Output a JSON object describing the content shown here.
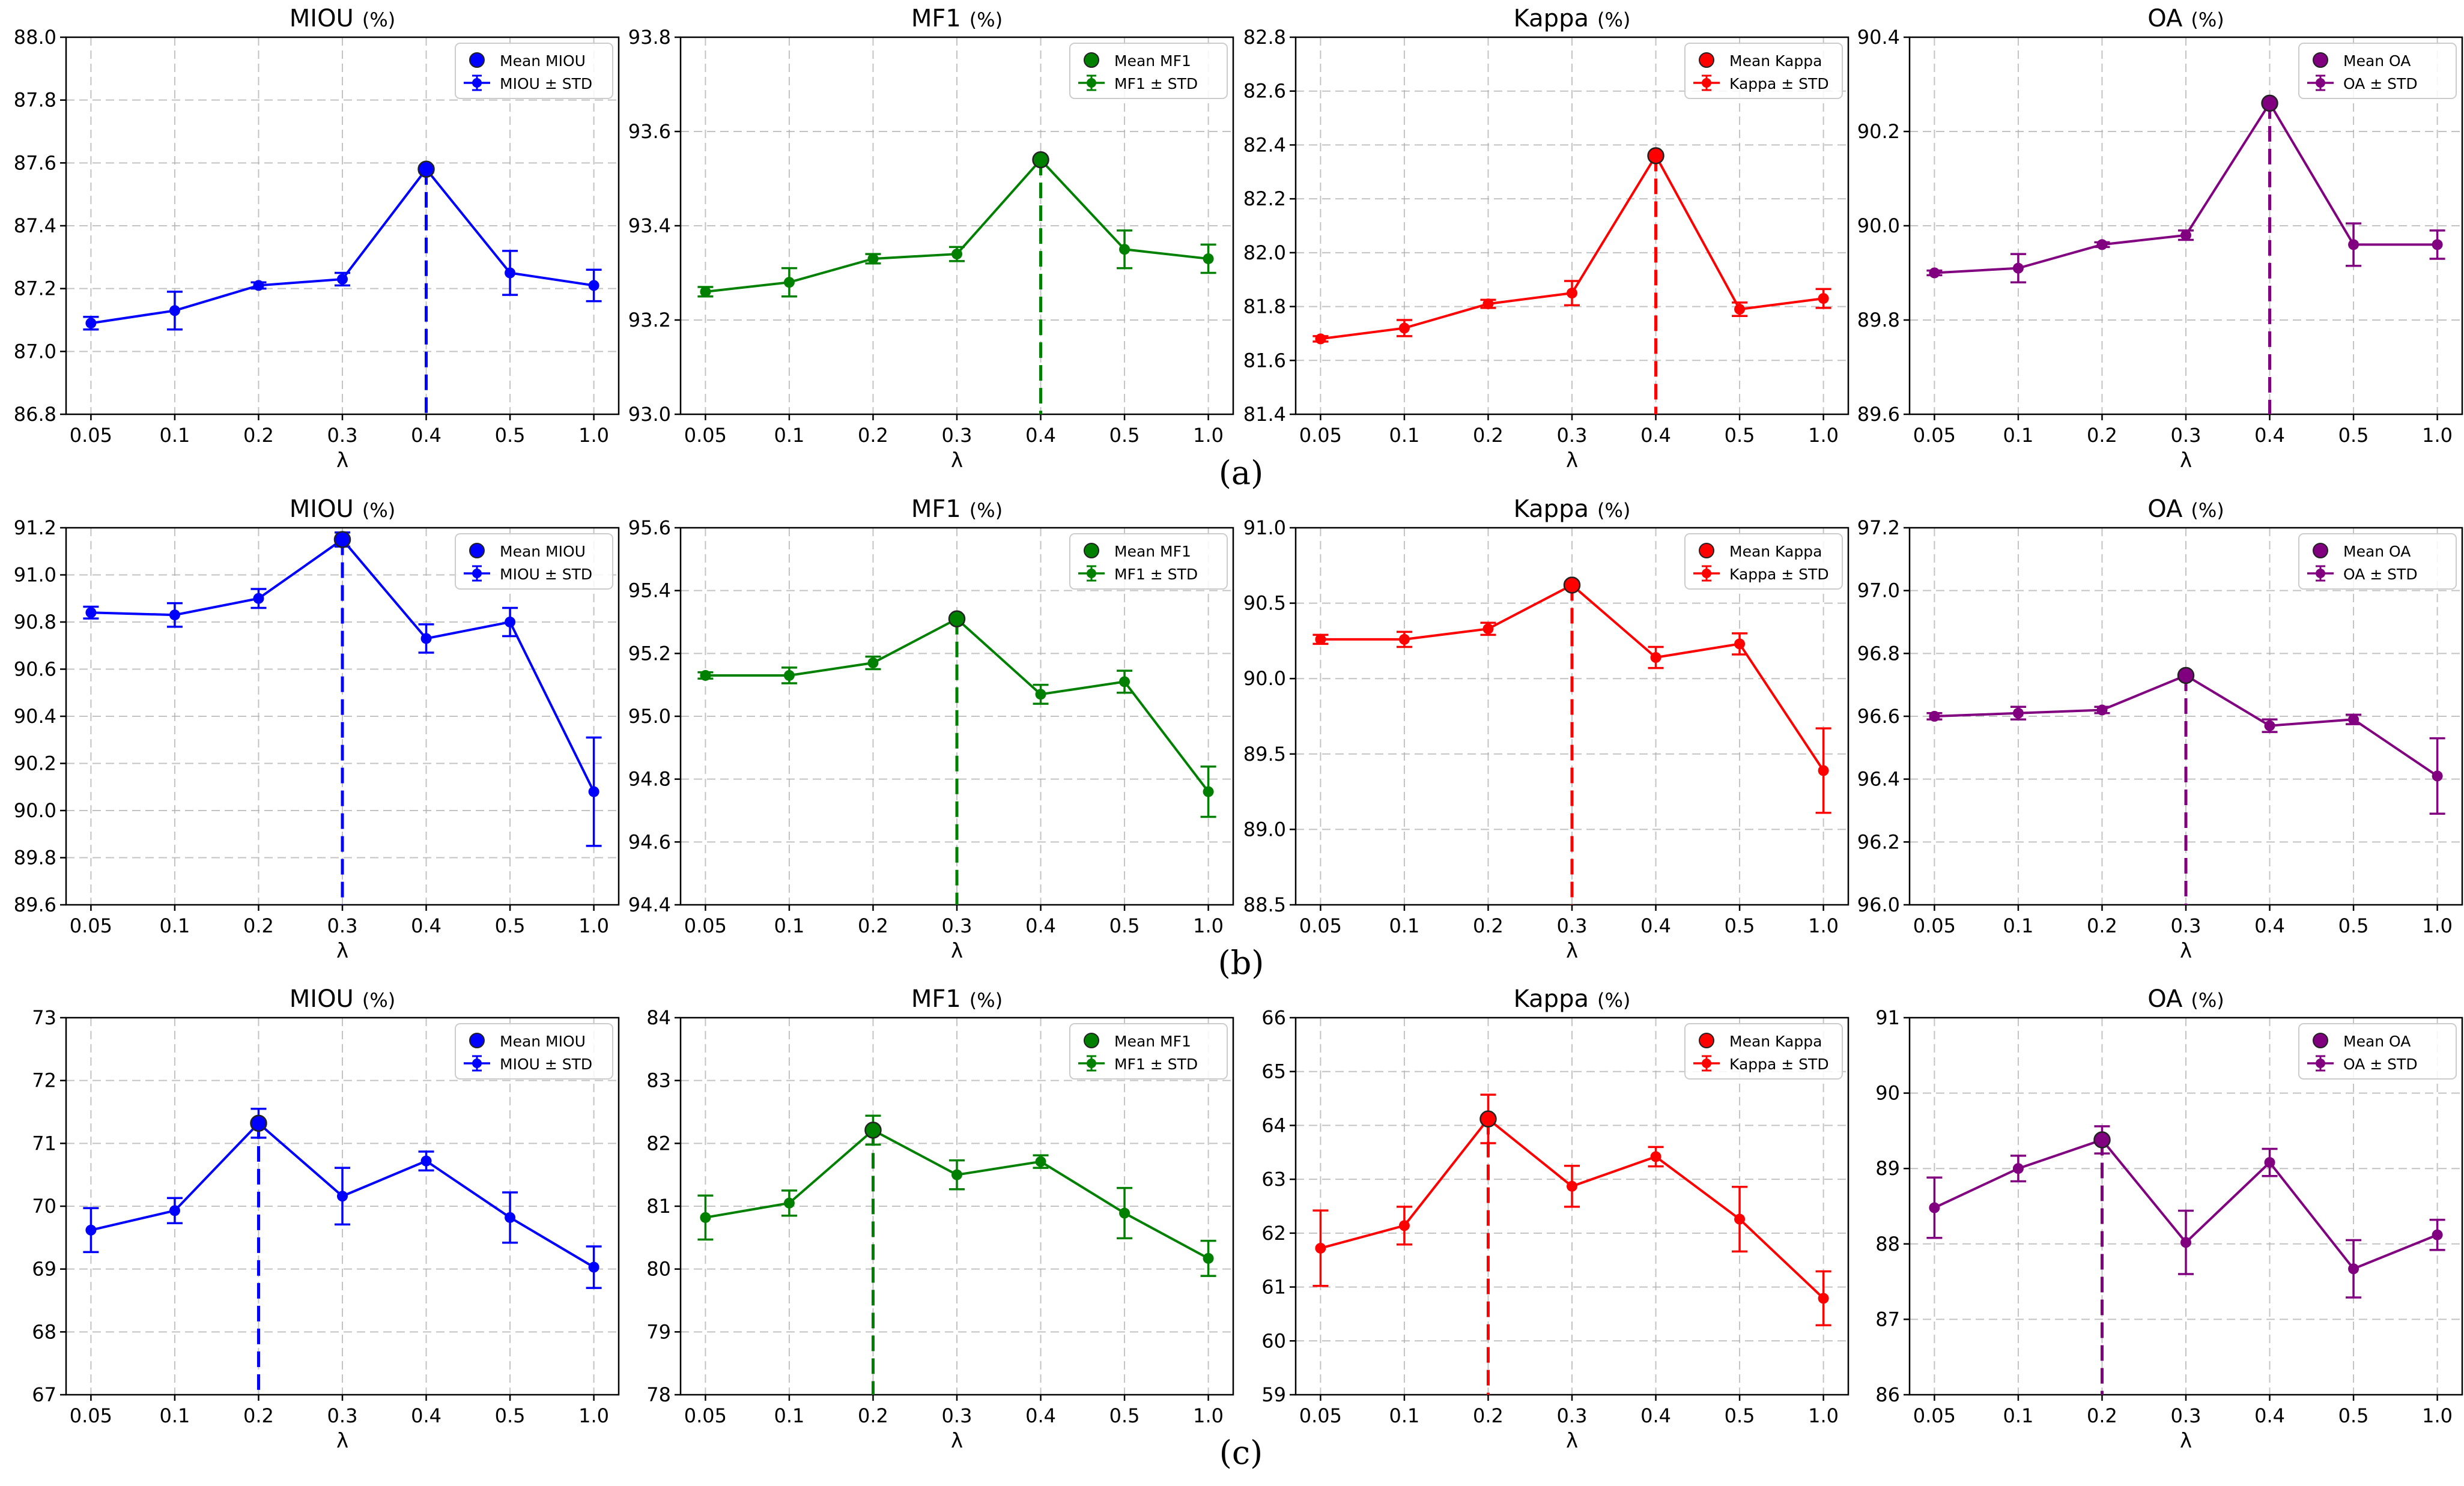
{
  "rows": [
    {
      "label": "(a)",
      "best_index": 4
    },
    {
      "label": "(b)",
      "best_index": 3
    },
    {
      "label": "(c)",
      "best_index": 2
    }
  ],
  "metrics": [
    {
      "title": "MIOU",
      "suffix": "(%)",
      "color": "#0000ff",
      "legend_mean": "Mean MIOU",
      "legend_std": "MIOU ± STD"
    },
    {
      "title": "MF1",
      "suffix": "(%)",
      "color": "#008000",
      "legend_mean": "Mean MF1",
      "legend_std": "MF1 ± STD"
    },
    {
      "title": "Kappa",
      "suffix": "(%)",
      "color": "#ff0000",
      "legend_mean": "Mean Kappa",
      "legend_std": "Kappa ± STD"
    },
    {
      "title": "OA",
      "suffix": "(%)",
      "color": "#800080",
      "legend_mean": "Mean OA",
      "legend_std": "OA ± STD"
    }
  ],
  "chart_data": [
    {
      "type": "line",
      "row": 0,
      "metric": 0,
      "title": "MIOU (%)",
      "xlabel": "λ",
      "ylabel": "",
      "categories": [
        "0.05",
        "0.1",
        "0.2",
        "0.3",
        "0.4",
        "0.5",
        "1.0"
      ],
      "values": [
        87.09,
        87.13,
        87.21,
        87.23,
        87.58,
        87.25,
        87.21
      ],
      "std": [
        0.02,
        0.06,
        0.01,
        0.02,
        0.01,
        0.07,
        0.05
      ],
      "ylim": [
        86.8,
        88.0
      ],
      "yticks": [
        "86.8",
        "87.0",
        "87.2",
        "87.4",
        "87.6",
        "87.8",
        "88.0"
      ],
      "legend": "top-right",
      "grid": true
    },
    {
      "type": "line",
      "row": 0,
      "metric": 1,
      "title": "MF1 (%)",
      "xlabel": "λ",
      "ylabel": "",
      "categories": [
        "0.05",
        "0.1",
        "0.2",
        "0.3",
        "0.4",
        "0.5",
        "1.0"
      ],
      "values": [
        93.26,
        93.28,
        93.33,
        93.34,
        93.54,
        93.35,
        93.33
      ],
      "std": [
        0.01,
        0.03,
        0.01,
        0.015,
        0.005,
        0.04,
        0.03
      ],
      "ylim": [
        93.0,
        93.8
      ],
      "yticks": [
        "93.0",
        "93.2",
        "93.4",
        "93.6",
        "93.8"
      ],
      "legend": "top-right",
      "grid": true
    },
    {
      "type": "line",
      "row": 0,
      "metric": 2,
      "title": "Kappa (%)",
      "xlabel": "λ",
      "ylabel": "",
      "categories": [
        "0.05",
        "0.1",
        "0.2",
        "0.3",
        "0.4",
        "0.5",
        "1.0"
      ],
      "values": [
        81.68,
        81.72,
        81.81,
        81.85,
        82.36,
        81.79,
        81.83
      ],
      "std": [
        0.01,
        0.03,
        0.015,
        0.045,
        0.01,
        0.025,
        0.035
      ],
      "ylim": [
        81.4,
        82.8
      ],
      "yticks": [
        "81.4",
        "81.6",
        "81.8",
        "82.0",
        "82.2",
        "82.4",
        "82.6",
        "82.8"
      ],
      "legend": "top-right",
      "grid": true
    },
    {
      "type": "line",
      "row": 0,
      "metric": 3,
      "title": "OA (%)",
      "xlabel": "λ",
      "ylabel": "",
      "categories": [
        "0.05",
        "0.1",
        "0.2",
        "0.3",
        "0.4",
        "0.5",
        "1.0"
      ],
      "values": [
        89.9,
        89.91,
        89.96,
        89.98,
        90.26,
        89.96,
        89.96
      ],
      "std": [
        0.005,
        0.03,
        0.005,
        0.01,
        0.005,
        0.045,
        0.03
      ],
      "ylim": [
        89.6,
        90.4
      ],
      "yticks": [
        "89.6",
        "89.8",
        "90.0",
        "90.2",
        "90.4"
      ],
      "legend": "top-right",
      "grid": true
    },
    {
      "type": "line",
      "row": 1,
      "metric": 0,
      "title": "MIOU (%)",
      "xlabel": "λ",
      "ylabel": "",
      "categories": [
        "0.05",
        "0.1",
        "0.2",
        "0.3",
        "0.4",
        "0.5",
        "1.0"
      ],
      "values": [
        90.84,
        90.83,
        90.9,
        91.15,
        90.73,
        90.8,
        90.08
      ],
      "std": [
        0.025,
        0.05,
        0.04,
        0.03,
        0.06,
        0.06,
        0.23
      ],
      "ylim": [
        89.6,
        91.2
      ],
      "yticks": [
        "89.6",
        "89.8",
        "90.0",
        "90.2",
        "90.4",
        "90.6",
        "90.8",
        "91.0",
        "91.2"
      ],
      "legend": "top-right",
      "grid": true
    },
    {
      "type": "line",
      "row": 1,
      "metric": 1,
      "title": "MF1 (%)",
      "xlabel": "λ",
      "ylabel": "",
      "categories": [
        "0.05",
        "0.1",
        "0.2",
        "0.3",
        "0.4",
        "0.5",
        "1.0"
      ],
      "values": [
        95.13,
        95.13,
        95.17,
        95.31,
        95.07,
        95.11,
        94.76
      ],
      "std": [
        0.01,
        0.025,
        0.02,
        0.01,
        0.03,
        0.035,
        0.08
      ],
      "ylim": [
        94.4,
        95.6
      ],
      "yticks": [
        "94.4",
        "94.6",
        "94.8",
        "95.0",
        "95.2",
        "95.4",
        "95.6"
      ],
      "legend": "top-right",
      "grid": true
    },
    {
      "type": "line",
      "row": 1,
      "metric": 2,
      "title": "Kappa (%)",
      "xlabel": "λ",
      "ylabel": "",
      "categories": [
        "0.05",
        "0.1",
        "0.2",
        "0.3",
        "0.4",
        "0.5",
        "1.0"
      ],
      "values": [
        90.26,
        90.26,
        90.33,
        90.62,
        90.14,
        90.23,
        89.39
      ],
      "std": [
        0.03,
        0.05,
        0.04,
        0.02,
        0.07,
        0.07,
        0.28
      ],
      "ylim": [
        88.5,
        91.0
      ],
      "yticks": [
        "88.5",
        "89.0",
        "89.5",
        "90.0",
        "90.5",
        "91.0"
      ],
      "legend": "top-right",
      "grid": true
    },
    {
      "type": "line",
      "row": 1,
      "metric": 3,
      "title": "OA (%)",
      "xlabel": "λ",
      "ylabel": "",
      "categories": [
        "0.05",
        "0.1",
        "0.2",
        "0.3",
        "0.4",
        "0.5",
        "1.0"
      ],
      "values": [
        96.6,
        96.61,
        96.62,
        96.73,
        96.57,
        96.59,
        96.41
      ],
      "std": [
        0.01,
        0.02,
        0.01,
        0.005,
        0.02,
        0.015,
        0.12
      ],
      "ylim": [
        96.0,
        97.2
      ],
      "yticks": [
        "96.0",
        "96.2",
        "96.4",
        "96.6",
        "96.8",
        "97.0",
        "97.2"
      ],
      "legend": "top-right",
      "grid": true
    },
    {
      "type": "line",
      "row": 2,
      "metric": 0,
      "title": "MIOU (%)",
      "xlabel": "λ",
      "ylabel": "",
      "categories": [
        "0.05",
        "0.1",
        "0.2",
        "0.3",
        "0.4",
        "0.5",
        "1.0"
      ],
      "values": [
        69.62,
        69.93,
        71.32,
        70.16,
        70.72,
        69.82,
        69.03
      ],
      "std": [
        0.35,
        0.2,
        0.23,
        0.45,
        0.15,
        0.4,
        0.33
      ],
      "ylim": [
        67,
        73
      ],
      "yticks": [
        "67",
        "68",
        "69",
        "70",
        "71",
        "72",
        "73"
      ],
      "legend": "top-right",
      "grid": true
    },
    {
      "type": "line",
      "row": 2,
      "metric": 1,
      "title": "MF1 (%)",
      "xlabel": "λ",
      "ylabel": "",
      "categories": [
        "0.05",
        "0.1",
        "0.2",
        "0.3",
        "0.4",
        "0.5",
        "1.0"
      ],
      "values": [
        80.82,
        81.05,
        82.21,
        81.5,
        81.71,
        80.89,
        80.17
      ],
      "std": [
        0.35,
        0.2,
        0.23,
        0.23,
        0.1,
        0.4,
        0.28
      ],
      "ylim": [
        78,
        84
      ],
      "yticks": [
        "78",
        "79",
        "80",
        "81",
        "82",
        "83",
        "84"
      ],
      "legend": "top-right",
      "grid": true
    },
    {
      "type": "line",
      "row": 2,
      "metric": 2,
      "title": "Kappa (%)",
      "xlabel": "λ",
      "ylabel": "",
      "categories": [
        "0.05",
        "0.1",
        "0.2",
        "0.3",
        "0.4",
        "0.5",
        "1.0"
      ],
      "values": [
        61.72,
        62.14,
        64.12,
        62.87,
        63.42,
        62.26,
        60.79
      ],
      "std": [
        0.7,
        0.35,
        0.45,
        0.38,
        0.18,
        0.6,
        0.5
      ],
      "ylim": [
        59,
        66
      ],
      "yticks": [
        "59",
        "60",
        "61",
        "62",
        "63",
        "64",
        "65",
        "66"
      ],
      "legend": "top-right",
      "grid": true
    },
    {
      "type": "line",
      "row": 2,
      "metric": 3,
      "title": "OA (%)",
      "xlabel": "λ",
      "ylabel": "",
      "categories": [
        "0.05",
        "0.1",
        "0.2",
        "0.3",
        "0.4",
        "0.5",
        "1.0"
      ],
      "values": [
        88.48,
        89.0,
        89.38,
        88.02,
        89.08,
        87.67,
        88.12
      ],
      "std": [
        0.4,
        0.17,
        0.18,
        0.42,
        0.18,
        0.38,
        0.2
      ],
      "ylim": [
        86,
        91
      ],
      "yticks": [
        "86",
        "87",
        "88",
        "89",
        "90",
        "91"
      ],
      "legend": "top-right",
      "grid": true
    }
  ]
}
